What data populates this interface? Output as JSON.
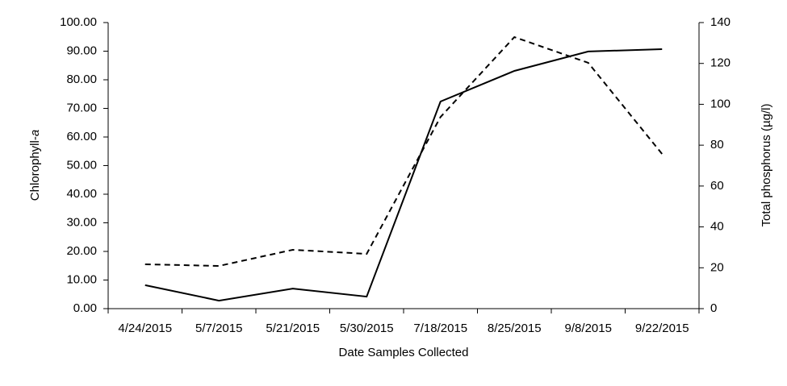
{
  "chart_data": {
    "type": "line",
    "categories": [
      "4/24/2015",
      "5/7/2015",
      "5/21/2015",
      "5/30/2015",
      "7/18/2015",
      "8/25/2015",
      "9/8/2015",
      "9/22/2015"
    ],
    "x_label": "Date Samples Collected",
    "y_label_parts": [
      "Chlorophyll-",
      "a"
    ],
    "y2_label": "Total phosphorus (µg/l)",
    "ylim": [
      0,
      100
    ],
    "yticks": [
      {
        "value": 0,
        "label": "0.00"
      },
      {
        "value": 10,
        "label": "10.00"
      },
      {
        "value": 20,
        "label": "20.00"
      },
      {
        "value": 30,
        "label": "30.00"
      },
      {
        "value": 40,
        "label": "40.00"
      },
      {
        "value": 50,
        "label": "50.00"
      },
      {
        "value": 60,
        "label": "60.00"
      },
      {
        "value": 70,
        "label": "70.00"
      },
      {
        "value": 80,
        "label": "80.00"
      },
      {
        "value": 90,
        "label": "90.00"
      },
      {
        "value": 100,
        "label": "100.00"
      }
    ],
    "y2lim": [
      0,
      140
    ],
    "y2ticks": [
      0,
      20,
      40,
      60,
      80,
      100,
      120,
      140
    ],
    "grid": false,
    "series": [
      {
        "color": "#000000",
        "style": "solid",
        "values": [
          8.2,
          2.8,
          7.0,
          4.2,
          72.4,
          83.1,
          89.9,
          90.7
        ]
      },
      {
        "color": "#000000",
        "style": "dashed",
        "axis": "y2",
        "values": [
          21.7,
          20.9,
          28.8,
          26.8,
          93.8,
          132.9,
          120.3,
          75.7
        ]
      }
    ]
  }
}
